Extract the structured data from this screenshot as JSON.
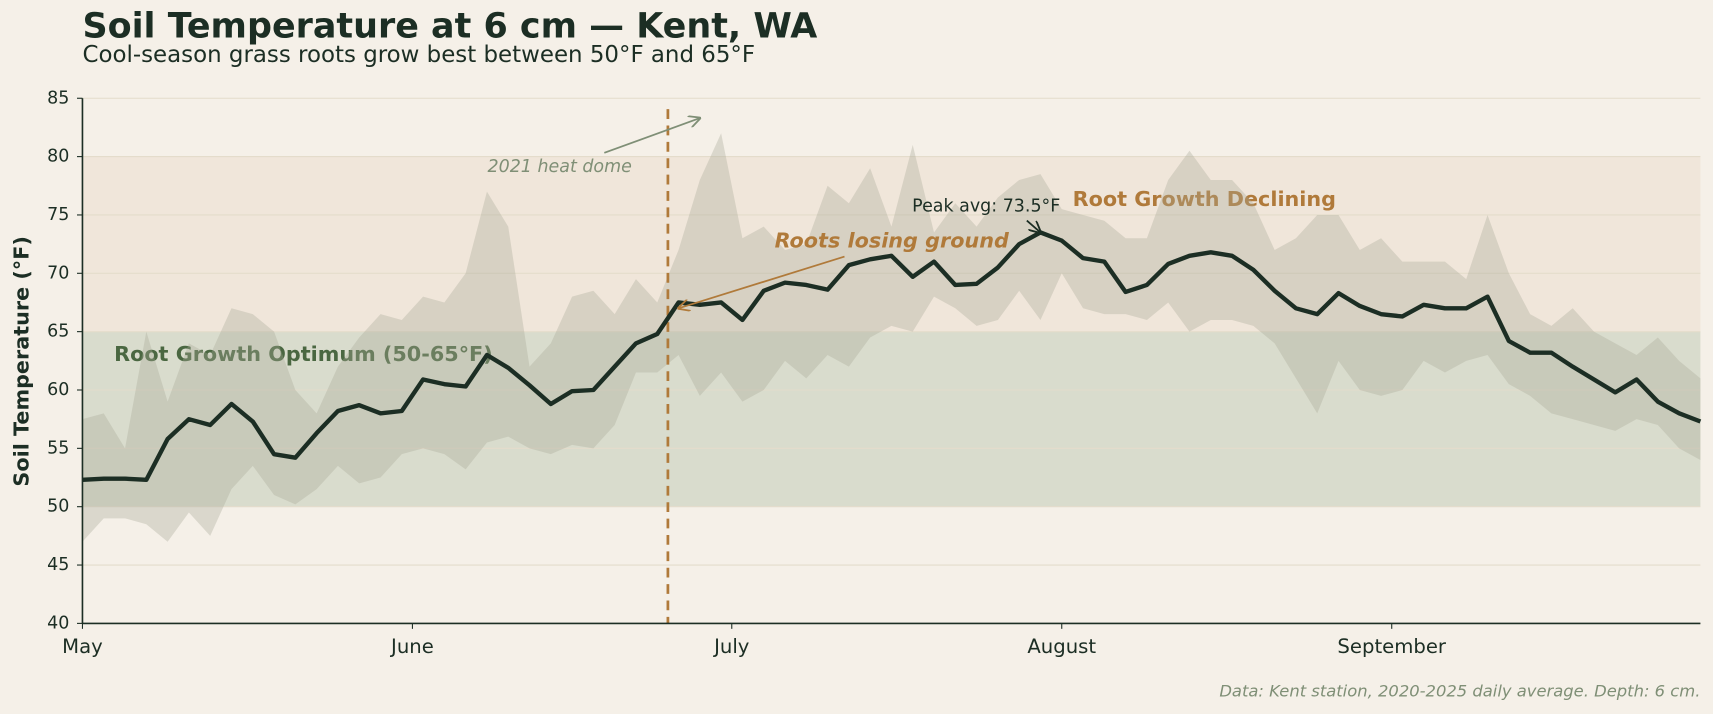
{
  "chart_data": {
    "type": "line",
    "title": "Soil Temperature at 6 cm — Kent, WA",
    "subtitle": "Cool-season grass roots grow best between 50°F and 65°F",
    "y_label": "Soil Temperature (°F)",
    "source": "Data: Kent station, 2020-2025 daily average. Depth: 6 cm.",
    "x": [
      0,
      2,
      4,
      6,
      8,
      10,
      12,
      14,
      16,
      18,
      20,
      22,
      24,
      26,
      28,
      30,
      32,
      34,
      36,
      38,
      40,
      42,
      44,
      46,
      48,
      50,
      52,
      54,
      56,
      58,
      60,
      62,
      64,
      66,
      68,
      70,
      72,
      74,
      76,
      78,
      80,
      82,
      84,
      86,
      88,
      90,
      92,
      94,
      96,
      98,
      100,
      102,
      104,
      106,
      108,
      110,
      112,
      114,
      116,
      118,
      120,
      122,
      124,
      126,
      128,
      130,
      132,
      134,
      136,
      138,
      140,
      142,
      144,
      146,
      148,
      150,
      152
    ],
    "series": [
      {
        "color": "#1c2e24",
        "values": [
          52.3,
          52.4,
          52.4,
          52.3,
          55.8,
          57.5,
          57,
          58.8,
          57.3,
          54.5,
          54.2,
          56.3,
          58.2,
          58.7,
          58,
          58.2,
          60.9,
          60.5,
          60.3,
          63,
          61.9,
          60.4,
          58.8,
          59.9,
          60,
          62,
          64,
          64.8,
          67.5,
          67.3,
          67.5,
          66,
          68.5,
          69.2,
          69,
          68.6,
          70.7,
          71.2,
          71.5,
          69.7,
          71,
          69,
          69.1,
          70.5,
          72.5,
          73.5,
          72.8,
          71.3,
          71,
          68.4,
          69,
          70.8,
          71.5,
          71.8,
          71.5,
          70.3,
          68.5,
          67,
          66.5,
          68.3,
          67.2,
          66.5,
          66.3,
          67.3,
          67,
          67,
          68,
          64.2,
          63.2,
          63.2,
          62,
          60.9,
          59.8,
          60.9,
          59,
          58,
          57.3
        ]
      }
    ],
    "band": {
      "color": "#a9a898",
      "upper": [
        57.5,
        58,
        55,
        65,
        59,
        64,
        63,
        67,
        66.5,
        65,
        60,
        58,
        62,
        64.5,
        66.5,
        66,
        68,
        67.5,
        70,
        77,
        74,
        62,
        64,
        68,
        68.5,
        66.5,
        69.5,
        67.5,
        72,
        78,
        82,
        73,
        74,
        72,
        72.5,
        77.5,
        76,
        79,
        74,
        81,
        73.5,
        76,
        74,
        76.5,
        78,
        78.5,
        75.5,
        75,
        74.5,
        73,
        73,
        78,
        80.5,
        78,
        78,
        76,
        72,
        73,
        75,
        75,
        72,
        73,
        71,
        71,
        71,
        69.5,
        75,
        70,
        66.5,
        65.5,
        67,
        65,
        64,
        63,
        64.5,
        62.5,
        61
      ],
      "lower": [
        47,
        49,
        49,
        48.5,
        47,
        49.5,
        47.5,
        51.5,
        53.5,
        51,
        50.2,
        51.5,
        53.5,
        52,
        52.5,
        54.5,
        55,
        54.5,
        53.2,
        55.5,
        56,
        55,
        54.5,
        55.3,
        55,
        57,
        61.5,
        61.5,
        63,
        59.5,
        61.5,
        59,
        60,
        62.5,
        61,
        63,
        62,
        64.5,
        65.5,
        65,
        68,
        67,
        65.5,
        66,
        68.5,
        66,
        70,
        67,
        66.5,
        66.5,
        66,
        67.5,
        65,
        66,
        66,
        65.5,
        64,
        61,
        58,
        62.5,
        60,
        59.5,
        60,
        62.5,
        61.5,
        62.5,
        63,
        60.5,
        59.5,
        58,
        57.5,
        57,
        56.5,
        57.5,
        57,
        55,
        54
      ]
    },
    "zones": [
      {
        "label": "Root Growth Optimum (50-65°F)",
        "range": [
          50,
          65
        ],
        "color": "#d9dccd"
      },
      {
        "label": "Root Growth Declining",
        "range": [
          65,
          80
        ],
        "color": "#f0e6da"
      }
    ],
    "vline": {
      "x": 55,
      "color": "#b07a3a"
    },
    "annotations": [
      {
        "text": "2021 heat dome",
        "x": 58,
        "y": 83.3
      },
      {
        "text": "Roots losing ground",
        "x": 56,
        "y": 67
      },
      {
        "text": "Peak avg: 73.5°F",
        "x": 90,
        "y": 73.5
      }
    ],
    "xlim": [
      0,
      152
    ],
    "ylim": [
      40,
      85
    ],
    "xticks": [
      {
        "value": 0,
        "label": "May"
      },
      {
        "value": 31,
        "label": "June"
      },
      {
        "value": 61,
        "label": "July"
      },
      {
        "value": 92,
        "label": "August"
      },
      {
        "value": 123,
        "label": "September"
      }
    ],
    "yticks": [
      40,
      45,
      50,
      55,
      60,
      65,
      70,
      75,
      80,
      85
    ],
    "grid": true
  }
}
